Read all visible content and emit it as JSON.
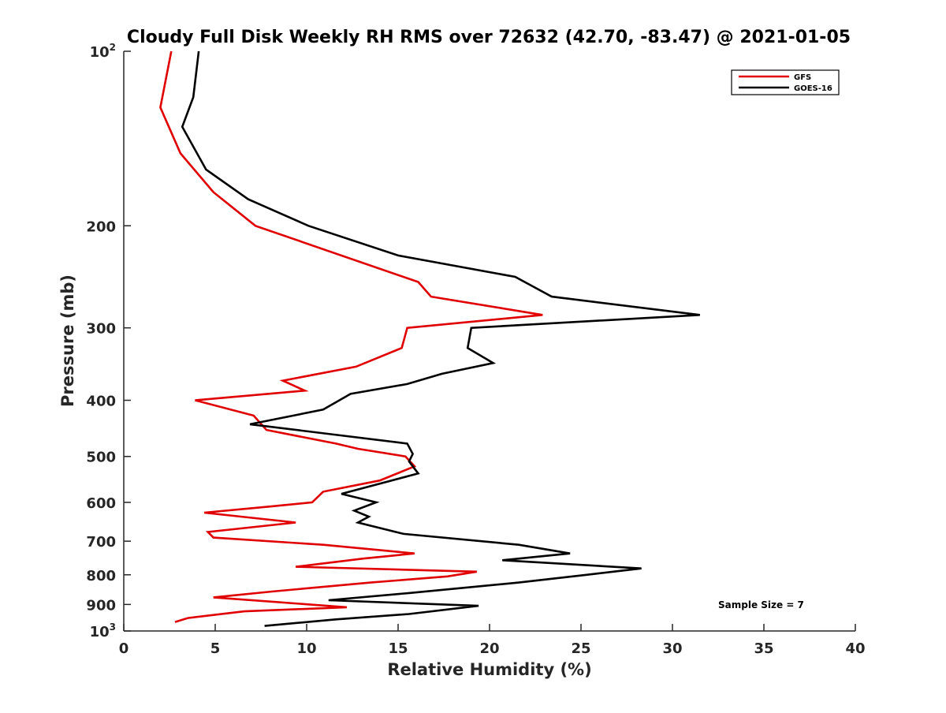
{
  "chart_data": {
    "type": "line",
    "title": "Cloudy Full Disk Weekly RH RMS over 72632 (42.70, -83.47) @ 2021-01-05",
    "xlabel": "Relative Humidity (%)",
    "ylabel": "Pressure (mb)",
    "xlim": [
      0,
      40
    ],
    "ylim": [
      1000,
      100
    ],
    "yscale": "log",
    "y_reversed": true,
    "x_ticks": [
      0,
      5,
      10,
      15,
      20,
      25,
      30,
      35,
      40
    ],
    "x_tick_labels": [
      "0",
      "5",
      "10",
      "15",
      "20",
      "25",
      "30",
      "35",
      "40"
    ],
    "y_ticks": [
      100,
      200,
      300,
      400,
      500,
      600,
      700,
      800,
      900,
      1000
    ],
    "y_tick_labels": [
      {
        "base": "10",
        "exp": "2"
      },
      {
        "base": "200",
        "exp": ""
      },
      {
        "base": "300",
        "exp": ""
      },
      {
        "base": "400",
        "exp": ""
      },
      {
        "base": "500",
        "exp": ""
      },
      {
        "base": "600",
        "exp": ""
      },
      {
        "base": "700",
        "exp": ""
      },
      {
        "base": "800",
        "exp": ""
      },
      {
        "base": "900",
        "exp": ""
      },
      {
        "base": "10",
        "exp": "3"
      }
    ],
    "grid": false,
    "legend_position": "top-right",
    "annotation": "Sample Size = 7",
    "series": [
      {
        "name": "GFS",
        "color": "#e00000",
        "points": [
          [
            2.6,
            100
          ],
          [
            2.0,
            125
          ],
          [
            3.1,
            150
          ],
          [
            4.9,
            175
          ],
          [
            7.2,
            200
          ],
          [
            16.1,
            250
          ],
          [
            16.8,
            265
          ],
          [
            22.9,
            285
          ],
          [
            15.5,
            300
          ],
          [
            15.2,
            325
          ],
          [
            12.7,
            350
          ],
          [
            8.7,
            370
          ],
          [
            9.9,
            385
          ],
          [
            3.9,
            400
          ],
          [
            7.1,
            425
          ],
          [
            7.8,
            450
          ],
          [
            11.6,
            475
          ],
          [
            12.8,
            485
          ],
          [
            15.4,
            500
          ],
          [
            15.9,
            520
          ],
          [
            14.0,
            550
          ],
          [
            10.9,
            575
          ],
          [
            10.3,
            600
          ],
          [
            8.0,
            610
          ],
          [
            4.4,
            625
          ],
          [
            9.4,
            650
          ],
          [
            4.6,
            675
          ],
          [
            4.9,
            690
          ],
          [
            10.9,
            710
          ],
          [
            15.9,
            735
          ],
          [
            13.1,
            750
          ],
          [
            9.4,
            775
          ],
          [
            19.3,
            790
          ],
          [
            17.7,
            805
          ],
          [
            13.5,
            825
          ],
          [
            8.1,
            855
          ],
          [
            4.9,
            875
          ],
          [
            12.2,
            910
          ],
          [
            6.6,
            925
          ],
          [
            3.5,
            950
          ],
          [
            2.8,
            965
          ]
        ]
      },
      {
        "name": "GOES-16",
        "color": "#000000",
        "points": [
          [
            4.1,
            100
          ],
          [
            3.8,
            120
          ],
          [
            3.2,
            135
          ],
          [
            4.5,
            160
          ],
          [
            6.8,
            180
          ],
          [
            10.1,
            200
          ],
          [
            15.0,
            225
          ],
          [
            21.4,
            245
          ],
          [
            23.4,
            265
          ],
          [
            31.5,
            285
          ],
          [
            19.0,
            300
          ],
          [
            18.8,
            325
          ],
          [
            20.2,
            345
          ],
          [
            17.4,
            360
          ],
          [
            15.5,
            375
          ],
          [
            12.4,
            390
          ],
          [
            10.9,
            415
          ],
          [
            6.9,
            440
          ],
          [
            15.5,
            475
          ],
          [
            15.8,
            495
          ],
          [
            15.6,
            510
          ],
          [
            16.1,
            535
          ],
          [
            11.9,
            580
          ],
          [
            13.8,
            600
          ],
          [
            12.6,
            620
          ],
          [
            13.4,
            635
          ],
          [
            12.8,
            650
          ],
          [
            15.3,
            680
          ],
          [
            21.6,
            710
          ],
          [
            24.4,
            735
          ],
          [
            20.7,
            755
          ],
          [
            28.3,
            780
          ],
          [
            25.3,
            800
          ],
          [
            21.6,
            825
          ],
          [
            15.6,
            860
          ],
          [
            11.2,
            885
          ],
          [
            19.4,
            905
          ],
          [
            15.6,
            935
          ],
          [
            11.6,
            955
          ],
          [
            7.7,
            980
          ]
        ]
      }
    ]
  }
}
